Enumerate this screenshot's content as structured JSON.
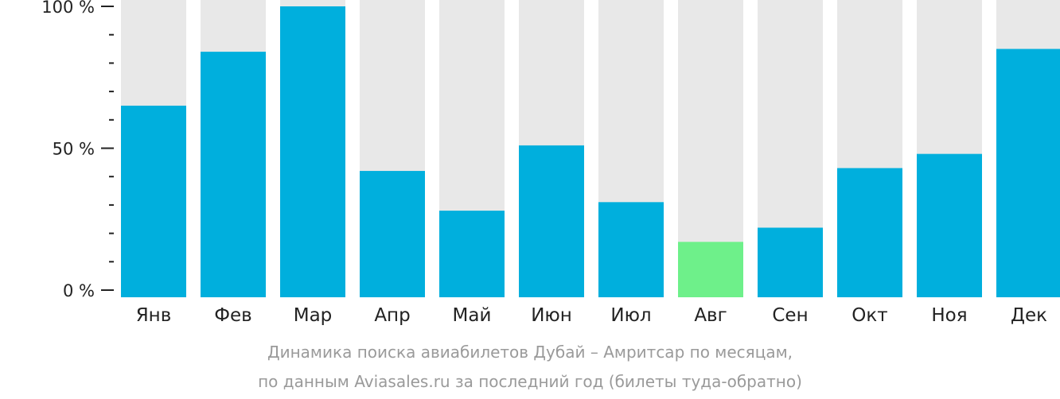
{
  "chart_data": {
    "type": "bar",
    "categories": [
      "Янв",
      "Фев",
      "Мар",
      "Апр",
      "Май",
      "Июн",
      "Июл",
      "Авг",
      "Сен",
      "Окт",
      "Ноя",
      "Дек"
    ],
    "values": [
      65,
      84,
      100,
      42,
      28,
      51,
      31,
      17,
      22,
      43,
      48,
      85
    ],
    "highlight_index": 7,
    "ylim": [
      0,
      100
    ],
    "yticks": [
      {
        "value": 0,
        "label": "0 %"
      },
      {
        "value": 50,
        "label": "50 %"
      },
      {
        "value": 100,
        "label": "100 %"
      }
    ],
    "minor_tick_step": 10,
    "colors": {
      "bar": "#00afdd",
      "highlight": "#6ef08a",
      "track": "#e8e8e8",
      "axis": "#222222"
    }
  },
  "caption": {
    "line1": "Динамика поиска авиабилетов Дубай – Амритсар по месяцам,",
    "line2": "по данным Aviasales.ru за последний год (билеты туда-обратно)"
  }
}
